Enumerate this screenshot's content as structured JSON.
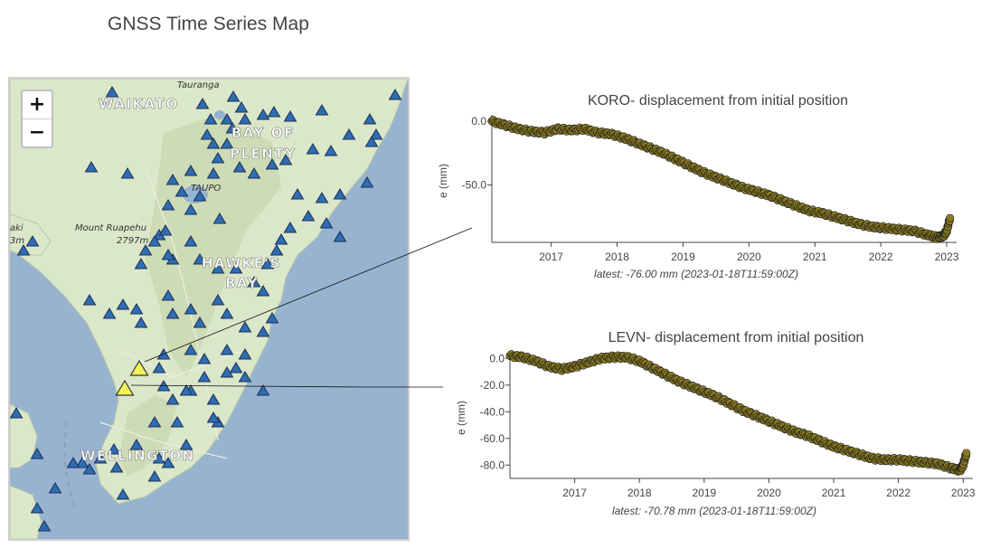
{
  "page": {
    "title": "GNSS Time Series Map"
  },
  "map": {
    "zoom_in_label": "+",
    "zoom_out_label": "−",
    "colors": {
      "sea": "#97b3cf",
      "land": "#dbe7c9",
      "highland": "#c9dab2",
      "station": "#2f6db3",
      "selected_station": "#f4f15a"
    },
    "place_labels": {
      "waikato": "WAIKATO",
      "bay_of_plenty_1": "BAY OF",
      "bay_of_plenty_2": "PLENTY",
      "hawkes_bay_1": "HAWKE'S",
      "hawkes_bay_2": "BAY",
      "wellington": "WELLINGTON",
      "ruapehu_1": "Mount Ruapehu",
      "ruapehu_2": "2797m",
      "tauranga": "Tauranga",
      "taupo": "TAUPO",
      "partial_left_1": "aki",
      "partial_left_2": "3m"
    }
  },
  "chart_data": [
    {
      "type": "scatter",
      "station": "KORO",
      "title": "KORO- displacement from initial position",
      "ylabel": "e (mm)",
      "xlabel": "",
      "x_ticks": [
        "2017",
        "2018",
        "2019",
        "2020",
        "2021",
        "2022",
        "2023"
      ],
      "y_ticks": [
        "0.0",
        "-50.0"
      ],
      "xlim": [
        2016.1,
        2023.15
      ],
      "ylim": [
        -95,
        5
      ],
      "latest": "latest: -76.00 mm (2023-01-18T11:59:00Z)",
      "marker_color": "#8a7a1c",
      "series": [
        {
          "x": [
            2016.1,
            2016.3,
            2016.5,
            2016.7,
            2016.9,
            2017.1,
            2017.3,
            2017.5,
            2017.7,
            2017.9,
            2018.1,
            2018.3,
            2018.5,
            2018.7,
            2018.9,
            2019.1,
            2019.3,
            2019.5,
            2019.7,
            2019.9,
            2020.1,
            2020.3,
            2020.5,
            2020.7,
            2020.9,
            2021.1,
            2021.3,
            2021.5,
            2021.7,
            2021.9,
            2022.1,
            2022.3,
            2022.5,
            2022.7,
            2022.85,
            2022.95,
            2023.0,
            2023.05
          ],
          "y": [
            0,
            -3,
            -6,
            -8,
            -9,
            -6,
            -7,
            -6,
            -9,
            -10,
            -13,
            -17,
            -21,
            -25,
            -30,
            -35,
            -40,
            -44,
            -48,
            -52,
            -55,
            -58,
            -62,
            -66,
            -70,
            -72,
            -75,
            -78,
            -81,
            -83,
            -84,
            -85,
            -86,
            -89,
            -91,
            -90,
            -86,
            -76
          ]
        }
      ]
    },
    {
      "type": "scatter",
      "station": "LEVN",
      "title": "LEVN- displacement from initial position",
      "ylabel": "e (mm)",
      "xlabel": "",
      "x_ticks": [
        "2017",
        "2018",
        "2019",
        "2020",
        "2021",
        "2022",
        "2023"
      ],
      "y_ticks": [
        "0.0",
        "-20.0",
        "-40.0",
        "-60.0",
        "-80.0"
      ],
      "xlim": [
        2016.0,
        2023.15
      ],
      "ylim": [
        -90,
        5
      ],
      "latest": "latest: -70.78 mm (2023-01-18T11:59:00Z)",
      "marker_color": "#8a7a1c",
      "series": [
        {
          "x": [
            2016.0,
            2016.2,
            2016.4,
            2016.6,
            2016.8,
            2017.0,
            2017.2,
            2017.4,
            2017.6,
            2017.8,
            2018.0,
            2018.2,
            2018.4,
            2018.6,
            2018.8,
            2019.0,
            2019.2,
            2019.4,
            2019.6,
            2019.8,
            2020.0,
            2020.2,
            2020.4,
            2020.6,
            2020.8,
            2021.0,
            2021.2,
            2021.4,
            2021.6,
            2021.8,
            2022.0,
            2022.2,
            2022.4,
            2022.6,
            2022.8,
            2022.95,
            2023.0,
            2023.05
          ],
          "y": [
            2,
            1,
            -2,
            -6,
            -8,
            -6,
            -3,
            0,
            1,
            1,
            -2,
            -7,
            -12,
            -17,
            -21,
            -25,
            -29,
            -34,
            -39,
            -43,
            -47,
            -51,
            -55,
            -58,
            -62,
            -66,
            -69,
            -72,
            -75,
            -76,
            -76,
            -77,
            -78,
            -79,
            -82,
            -84,
            -80,
            -71
          ]
        }
      ]
    }
  ]
}
